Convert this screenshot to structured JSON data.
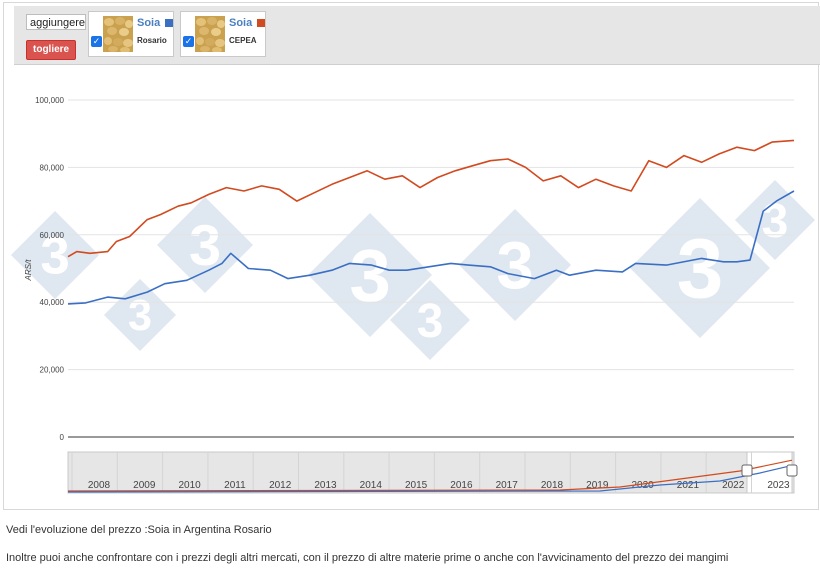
{
  "toolbar": {
    "add_label": "aggiungere -",
    "remove_label": "togliere",
    "series": [
      {
        "name": "Soia",
        "market": "Rosario",
        "color": "#3a6fc4",
        "checked": true
      },
      {
        "name": "Soia",
        "market": "CEPEA",
        "color": "#d24a1f",
        "checked": true
      }
    ]
  },
  "watermark": {
    "text": "3"
  },
  "chart_data": {
    "type": "line",
    "ylabel": "ARS/t",
    "ylim": [
      0,
      100000
    ],
    "yticks": [
      0,
      20000,
      40000,
      60000,
      80000,
      100000
    ],
    "ytick_labels": [
      "0",
      "20,000",
      "40,000",
      "60,000",
      "80,000",
      "100,000"
    ],
    "xlim": [
      2022.0,
      2023.65
    ],
    "series": [
      {
        "name": "Soia Rosario",
        "color": "#3a6fc4",
        "x": [
          2022.0,
          2022.04,
          2022.09,
          2022.13,
          2022.18,
          2022.22,
          2022.27,
          2022.32,
          2022.35,
          2022.37,
          2022.41,
          2022.46,
          2022.5,
          2022.55,
          2022.6,
          2022.64,
          2022.69,
          2022.73,
          2022.77,
          2022.82,
          2022.87,
          2022.91,
          2022.96,
          2023.0,
          2023.06,
          2023.11,
          2023.14,
          2023.2,
          2023.26,
          2023.29,
          2023.36,
          2023.44,
          2023.49,
          2023.52,
          2023.55,
          2023.58,
          2023.61,
          2023.65
        ],
        "y": [
          39500,
          39800,
          41500,
          41000,
          43000,
          45500,
          46500,
          49500,
          51500,
          54500,
          50000,
          49500,
          47000,
          48000,
          49500,
          51500,
          51000,
          49500,
          49500,
          50500,
          51500,
          51000,
          50500,
          48500,
          47000,
          49500,
          48000,
          49500,
          49000,
          51500,
          51000,
          53000,
          52000,
          52000,
          52500,
          67000,
          70000,
          73000
        ]
      },
      {
        "name": "Soia CEPEA",
        "color": "#d24a1f",
        "x": [
          2022.0,
          2022.02,
          2022.05,
          2022.09,
          2022.11,
          2022.14,
          2022.18,
          2022.21,
          2022.25,
          2022.28,
          2022.32,
          2022.36,
          2022.4,
          2022.44,
          2022.48,
          2022.52,
          2022.56,
          2022.6,
          2022.64,
          2022.68,
          2022.72,
          2022.76,
          2022.8,
          2022.84,
          2022.88,
          2022.92,
          2022.96,
          2023.0,
          2023.04,
          2023.08,
          2023.12,
          2023.16,
          2023.2,
          2023.24,
          2023.28,
          2023.32,
          2023.36,
          2023.4,
          2023.44,
          2023.48,
          2023.52,
          2023.56,
          2023.6,
          2023.65
        ],
        "y": [
          53500,
          55000,
          54500,
          55000,
          58000,
          59500,
          64500,
          66000,
          68500,
          69500,
          72000,
          74000,
          73000,
          74500,
          73500,
          70000,
          72500,
          75000,
          77000,
          79000,
          76500,
          77500,
          74000,
          77000,
          79000,
          80500,
          82000,
          82500,
          80000,
          76000,
          77500,
          74000,
          76500,
          74500,
          73000,
          82000,
          80000,
          83500,
          81500,
          84000,
          86000,
          85000,
          87500,
          88000
        ]
      }
    ],
    "overview_ticks": [
      "2008",
      "2009",
      "2010",
      "2011",
      "2012",
      "2013",
      "2014",
      "2015",
      "2016",
      "2017",
      "2018",
      "2019",
      "2020",
      "2021",
      "2022",
      "2023"
    ]
  },
  "captions": {
    "line1": "Vedi l'evoluzione del prezzo :Soia in Argentina Rosario",
    "line2": "Inoltre puoi anche confrontare con i prezzi degli altri mercati, con il prezzo di altre materie prime o anche con l'avvicinamento del prezzo dei mangimi"
  }
}
